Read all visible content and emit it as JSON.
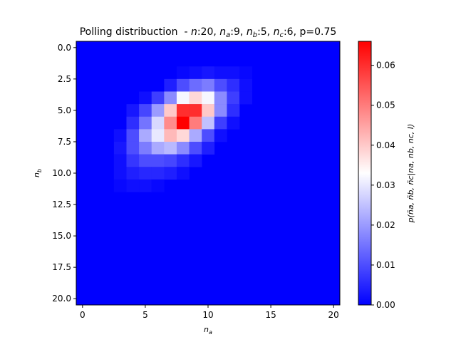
{
  "chart_data": {
    "type": "heatmap",
    "title": "Polling distribuction  - n:20, na:9, nb:5, nc:6, p=0.75",
    "title_parts": {
      "prefix": "Polling distribuction  - ",
      "n_label": "n",
      "n_value": ":20, ",
      "na_label": "n",
      "na_sub": "a",
      "na_value": ":9, ",
      "nb_label": "n",
      "nb_sub": "b",
      "nb_value": ":5, ",
      "nc_label": "n",
      "nc_sub": "c",
      "nc_value": ":6, ",
      "p_text": "p=0.75"
    },
    "xlabel": {
      "base": "n",
      "sub": "a"
    },
    "ylabel": {
      "base": "n",
      "sub": "b"
    },
    "colorbar_label": "p(ña, ñb, ñc|na, nb, nc, I)",
    "x_range": [
      -0.5,
      20.5
    ],
    "y_range": [
      20.5,
      -0.5
    ],
    "x_ticks": [
      {
        "value": 0,
        "label": "0"
      },
      {
        "value": 5,
        "label": "5"
      },
      {
        "value": 10,
        "label": "10"
      },
      {
        "value": 15,
        "label": "15"
      },
      {
        "value": 20,
        "label": "20"
      }
    ],
    "y_ticks": [
      {
        "value": 0,
        "label": "0.0"
      },
      {
        "value": 2.5,
        "label": "2.5"
      },
      {
        "value": 5,
        "label": "5.0"
      },
      {
        "value": 7.5,
        "label": "7.5"
      },
      {
        "value": 10,
        "label": "10.0"
      },
      {
        "value": 12.5,
        "label": "12.5"
      },
      {
        "value": 15,
        "label": "15.0"
      },
      {
        "value": 17.5,
        "label": "17.5"
      },
      {
        "value": 20,
        "label": "20.0"
      }
    ],
    "colorbar_range": [
      0,
      0.066
    ],
    "colorbar_ticks": [
      {
        "value": 0,
        "label": "0.00"
      },
      {
        "value": 0.01,
        "label": "0.01"
      },
      {
        "value": 0.02,
        "label": "0.02"
      },
      {
        "value": 0.03,
        "label": "0.03"
      },
      {
        "value": 0.04,
        "label": "0.04"
      },
      {
        "value": 0.05,
        "label": "0.05"
      },
      {
        "value": 0.06,
        "label": "0.06"
      }
    ],
    "colormap": [
      "#0000ff",
      "#ffffff",
      "#ff0000"
    ],
    "grid_size": 21,
    "cells": [
      [
        8,
        2,
        0.001
      ],
      [
        9,
        2,
        0.002
      ],
      [
        10,
        2,
        0.003
      ],
      [
        11,
        2,
        0.002
      ],
      [
        12,
        2,
        0.002
      ],
      [
        13,
        2,
        0.001
      ],
      [
        7,
        3,
        0.004
      ],
      [
        8,
        3,
        0.01
      ],
      [
        9,
        3,
        0.014
      ],
      [
        10,
        3,
        0.016
      ],
      [
        11,
        3,
        0.01
      ],
      [
        12,
        3,
        0.006
      ],
      [
        13,
        3,
        0.002
      ],
      [
        5,
        4,
        0.002
      ],
      [
        6,
        4,
        0.008
      ],
      [
        7,
        4,
        0.018
      ],
      [
        8,
        4,
        0.032
      ],
      [
        9,
        4,
        0.038
      ],
      [
        10,
        4,
        0.032
      ],
      [
        11,
        4,
        0.018
      ],
      [
        12,
        4,
        0.008
      ],
      [
        13,
        4,
        0.002
      ],
      [
        4,
        5,
        0.003
      ],
      [
        5,
        5,
        0.009
      ],
      [
        6,
        5,
        0.02
      ],
      [
        7,
        5,
        0.04
      ],
      [
        8,
        5,
        0.06
      ],
      [
        9,
        5,
        0.06
      ],
      [
        10,
        5,
        0.04
      ],
      [
        11,
        5,
        0.018
      ],
      [
        12,
        5,
        0.006
      ],
      [
        4,
        6,
        0.006
      ],
      [
        5,
        6,
        0.015
      ],
      [
        6,
        6,
        0.028
      ],
      [
        7,
        6,
        0.048
      ],
      [
        8,
        6,
        0.066
      ],
      [
        9,
        6,
        0.05
      ],
      [
        10,
        6,
        0.025
      ],
      [
        11,
        6,
        0.008
      ],
      [
        12,
        6,
        0.002
      ],
      [
        3,
        7,
        0.002
      ],
      [
        4,
        7,
        0.01
      ],
      [
        5,
        7,
        0.022
      ],
      [
        6,
        7,
        0.03
      ],
      [
        7,
        7,
        0.042
      ],
      [
        8,
        7,
        0.038
      ],
      [
        9,
        7,
        0.022
      ],
      [
        10,
        7,
        0.01
      ],
      [
        11,
        7,
        0.002
      ],
      [
        3,
        8,
        0.003
      ],
      [
        4,
        8,
        0.01
      ],
      [
        5,
        8,
        0.016
      ],
      [
        6,
        8,
        0.022
      ],
      [
        7,
        8,
        0.024
      ],
      [
        8,
        8,
        0.018
      ],
      [
        9,
        8,
        0.01
      ],
      [
        10,
        8,
        0.004
      ],
      [
        3,
        9,
        0.002
      ],
      [
        4,
        9,
        0.007
      ],
      [
        5,
        9,
        0.01
      ],
      [
        6,
        9,
        0.01
      ],
      [
        7,
        9,
        0.009
      ],
      [
        8,
        9,
        0.006
      ],
      [
        9,
        9,
        0.003
      ],
      [
        3,
        10,
        0.002
      ],
      [
        4,
        10,
        0.004
      ],
      [
        5,
        10,
        0.005
      ],
      [
        6,
        10,
        0.005
      ],
      [
        7,
        10,
        0.004
      ],
      [
        8,
        10,
        0.002
      ],
      [
        3,
        11,
        0.001
      ],
      [
        4,
        11,
        0.002
      ],
      [
        5,
        11,
        0.002
      ],
      [
        6,
        11,
        0.001
      ]
    ]
  }
}
